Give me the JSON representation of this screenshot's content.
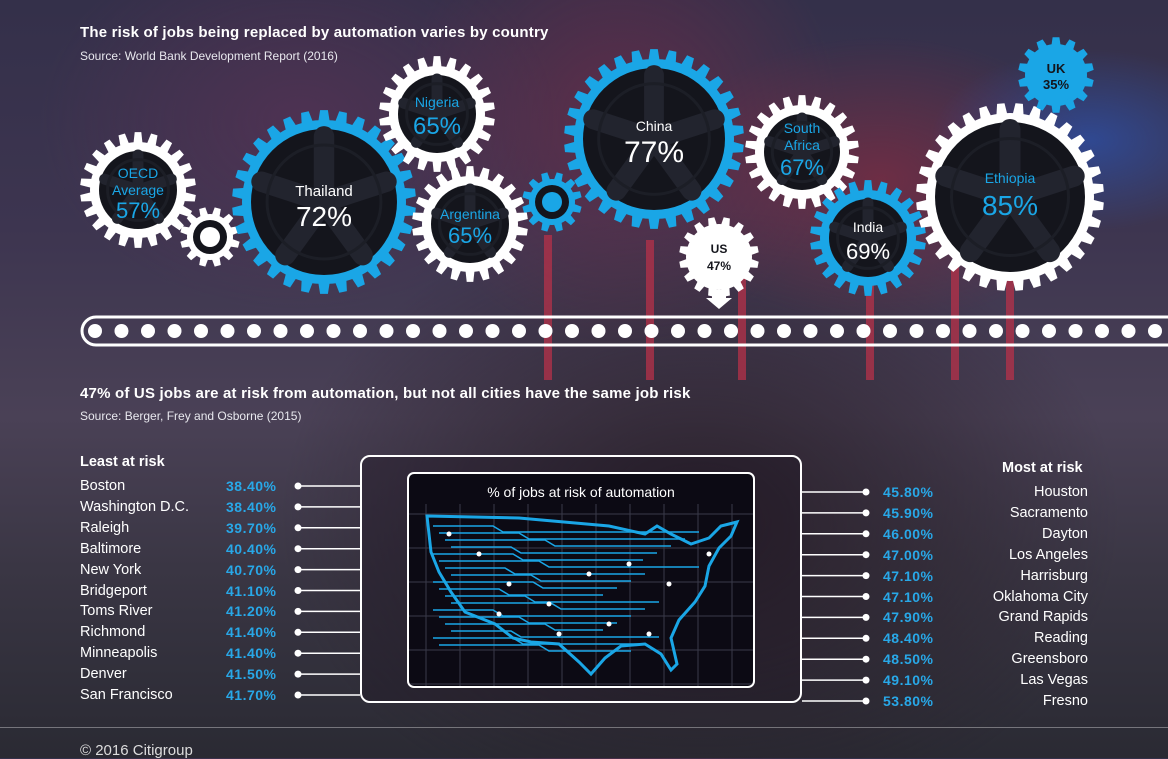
{
  "header": {
    "title": "The risk of jobs being replaced by automation varies by country",
    "source": "Source: World Bank Development Report (2016)"
  },
  "countries": [
    {
      "name": "OECD Average",
      "lines": [
        "OECD",
        "Average"
      ],
      "value": "57%"
    },
    {
      "name": "Thailand",
      "lines": [
        "Thailand"
      ],
      "value": "72%"
    },
    {
      "name": "Nigeria",
      "lines": [
        "Nigeria"
      ],
      "value": "65%"
    },
    {
      "name": "Argentina",
      "lines": [
        "Argentina"
      ],
      "value": "65%"
    },
    {
      "name": "China",
      "lines": [
        "China"
      ],
      "value": "77%"
    },
    {
      "name": "US",
      "lines": [
        "US"
      ],
      "value": "47%"
    },
    {
      "name": "South Africa",
      "lines": [
        "South",
        "Africa"
      ],
      "value": "67%"
    },
    {
      "name": "India",
      "lines": [
        "India"
      ],
      "value": "69%"
    },
    {
      "name": "Ethiopia",
      "lines": [
        "Ethiopia"
      ],
      "value": "85%"
    },
    {
      "name": "UK",
      "lines": [
        "UK"
      ],
      "value": "35%"
    }
  ],
  "colors": {
    "accent": "#1aa6e6",
    "dark": "#14151c",
    "white": "#ffffff"
  },
  "section2": {
    "title": "47% of US jobs are at risk from automation, but not all cities have the same job risk",
    "source": "Source: Berger, Frey and Osborne (2015)"
  },
  "least": {
    "header": "Least at risk",
    "rows": [
      {
        "city": "Boston",
        "pct": "38.40%"
      },
      {
        "city": "Washington D.C.",
        "pct": "38.40%"
      },
      {
        "city": "Raleigh",
        "pct": "39.70%"
      },
      {
        "city": "Baltimore",
        "pct": "40.40%"
      },
      {
        "city": "New York",
        "pct": "40.70%"
      },
      {
        "city": "Bridgeport",
        "pct": "41.10%"
      },
      {
        "city": "Toms River",
        "pct": "41.20%"
      },
      {
        "city": "Richmond",
        "pct": "41.40%"
      },
      {
        "city": "Minneapolis",
        "pct": "41.40%"
      },
      {
        "city": "Denver",
        "pct": "41.50%"
      },
      {
        "city": "San Francisco",
        "pct": "41.70%"
      }
    ]
  },
  "most": {
    "header": "Most at risk",
    "rows": [
      {
        "city": "Houston",
        "pct": "45.80%"
      },
      {
        "city": "Sacramento",
        "pct": "45.90%"
      },
      {
        "city": "Dayton",
        "pct": "46.00%"
      },
      {
        "city": "Los Angeles",
        "pct": "47.00%"
      },
      {
        "city": "Harrisburg",
        "pct": "47.10%"
      },
      {
        "city": "Oklahoma City",
        "pct": "47.10%"
      },
      {
        "city": "Grand Rapids",
        "pct": "47.90%"
      },
      {
        "city": "Reading",
        "pct": "48.40%"
      },
      {
        "city": "Greensboro",
        "pct": "48.50%"
      },
      {
        "city": "Las Vegas",
        "pct": "49.10%"
      },
      {
        "city": "Fresno",
        "pct": "53.80%"
      }
    ]
  },
  "map": {
    "title": "% of jobs at risk of automation"
  },
  "footer": "© 2016 Citigroup"
}
